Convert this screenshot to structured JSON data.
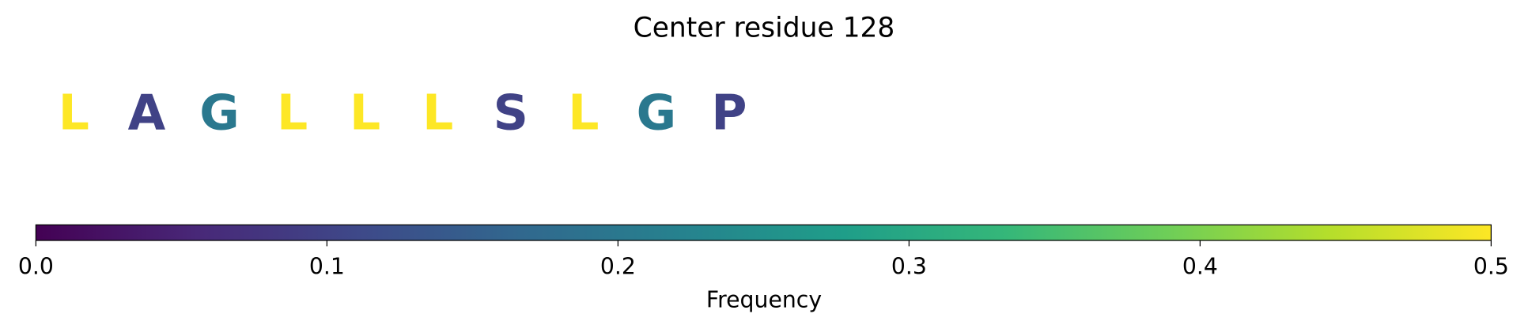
{
  "chart_data": {
    "type": "sequence",
    "title": "Center residue 128",
    "categories": [
      "L",
      "A",
      "G",
      "L",
      "L",
      "L",
      "S",
      "L",
      "G",
      "P"
    ],
    "values": [
      0.5,
      0.1,
      0.2,
      0.5,
      0.5,
      0.5,
      0.1,
      0.5,
      0.2,
      0.1
    ],
    "colormap": "viridis",
    "xlabel": "Frequency",
    "xlim": [
      0,
      0.5
    ],
    "xticks": [
      {
        "value": 0,
        "label": "0.0"
      },
      0.1,
      0.2,
      0.3,
      0.4,
      0.5
    ]
  }
}
